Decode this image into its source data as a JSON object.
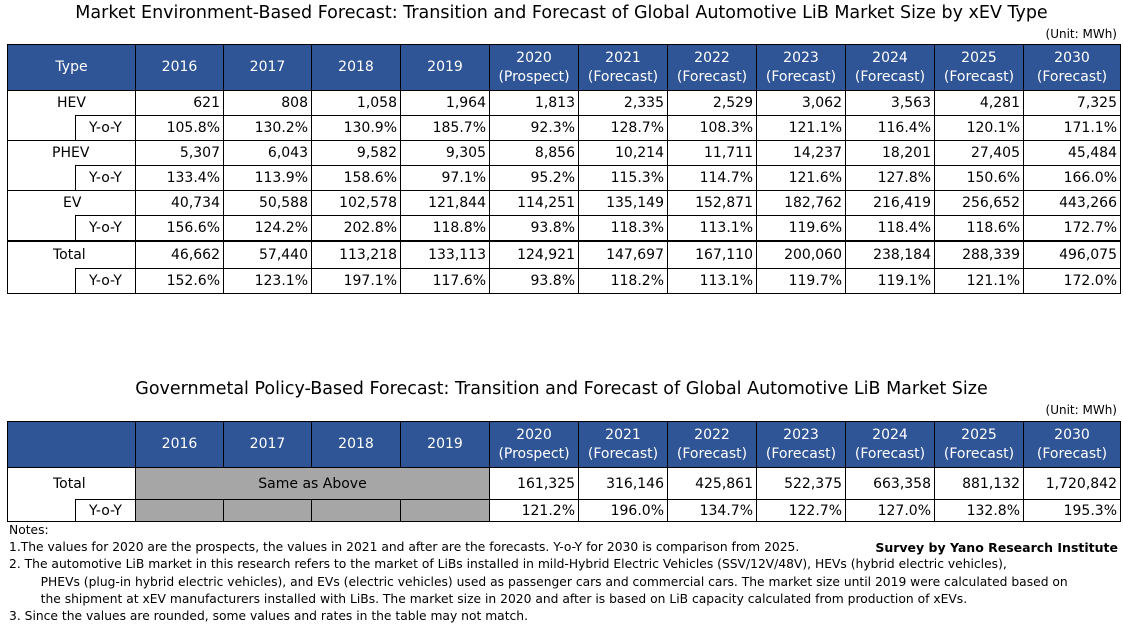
{
  "chart_data": [
    {
      "type": "table",
      "title": "Market Environment-Based Forecast: Transition and Forecast of Global Automotive LiB Market Size by xEV Type",
      "unit": "(Unit: MWh)",
      "type_header": "Type",
      "columns": [
        {
          "year": "2016",
          "note": ""
        },
        {
          "year": "2017",
          "note": ""
        },
        {
          "year": "2018",
          "note": ""
        },
        {
          "year": "2019",
          "note": ""
        },
        {
          "year": "2020",
          "note": "(Prospect)"
        },
        {
          "year": "2021",
          "note": "(Forecast)"
        },
        {
          "year": "2022",
          "note": "(Forecast)"
        },
        {
          "year": "2023",
          "note": "(Forecast)"
        },
        {
          "year": "2024",
          "note": "(Forecast)"
        },
        {
          "year": "2025",
          "note": "(Forecast)"
        },
        {
          "year": "2030",
          "note": "(Forecast)"
        }
      ],
      "rows": [
        {
          "name": "HEV",
          "values": [
            "621",
            "808",
            "1,058",
            "1,964",
            "1,813",
            "2,335",
            "2,529",
            "3,062",
            "3,563",
            "4,281",
            "7,325"
          ],
          "yoy_label": "Y-o-Y",
          "yoy": [
            "105.8%",
            "130.2%",
            "130.9%",
            "185.7%",
            "92.3%",
            "128.7%",
            "108.3%",
            "121.1%",
            "116.4%",
            "120.1%",
            "171.1%"
          ]
        },
        {
          "name": "PHEV",
          "values": [
            "5,307",
            "6,043",
            "9,582",
            "9,305",
            "8,856",
            "10,214",
            "11,711",
            "14,237",
            "18,201",
            "27,405",
            "45,484"
          ],
          "yoy_label": "Y-o-Y",
          "yoy": [
            "133.4%",
            "113.9%",
            "158.6%",
            "97.1%",
            "95.2%",
            "115.3%",
            "114.7%",
            "121.6%",
            "127.8%",
            "150.6%",
            "166.0%"
          ]
        },
        {
          "name": "EV",
          "values": [
            "40,734",
            "50,588",
            "102,578",
            "121,844",
            "114,251",
            "135,149",
            "152,871",
            "182,762",
            "216,419",
            "256,652",
            "443,266"
          ],
          "yoy_label": "Y-o-Y",
          "yoy": [
            "156.6%",
            "124.2%",
            "202.8%",
            "118.8%",
            "93.8%",
            "118.3%",
            "113.1%",
            "119.6%",
            "118.4%",
            "118.6%",
            "172.7%"
          ]
        },
        {
          "name": "Total",
          "values": [
            "46,662",
            "57,440",
            "113,218",
            "133,113",
            "124,921",
            "147,697",
            "167,110",
            "200,060",
            "238,184",
            "288,339",
            "496,075"
          ],
          "yoy_label": "Y-o-Y",
          "yoy": [
            "152.6%",
            "123.1%",
            "197.1%",
            "117.6%",
            "93.8%",
            "118.2%",
            "113.1%",
            "119.7%",
            "119.1%",
            "121.1%",
            "172.0%"
          ]
        }
      ]
    },
    {
      "type": "table",
      "title": "Governmetal Policy-Based Forecast: Transition and Forecast of Global Automotive LiB Market Size",
      "unit": "(Unit: MWh)",
      "same_text": "Same as Above",
      "columns": [
        {
          "year": "2016",
          "note": ""
        },
        {
          "year": "2017",
          "note": ""
        },
        {
          "year": "2018",
          "note": ""
        },
        {
          "year": "2019",
          "note": ""
        },
        {
          "year": "2020",
          "note": "(Prospect)"
        },
        {
          "year": "2021",
          "note": "(Forecast)"
        },
        {
          "year": "2022",
          "note": "(Forecast)"
        },
        {
          "year": "2023",
          "note": "(Forecast)"
        },
        {
          "year": "2024",
          "note": "(Forecast)"
        },
        {
          "year": "2025",
          "note": "(Forecast)"
        },
        {
          "year": "2030",
          "note": "(Forecast)"
        }
      ],
      "total": {
        "name": "Total",
        "values": [
          "161,325",
          "316,146",
          "425,861",
          "522,375",
          "663,358",
          "881,132",
          "1,720,842"
        ]
      },
      "yoy": {
        "name": "Y-o-Y",
        "values": [
          "121.2%",
          "196.0%",
          "134.7%",
          "122.7%",
          "127.0%",
          "132.8%",
          "195.3%"
        ]
      }
    }
  ],
  "notes": {
    "heading": "Notes:",
    "lines": [
      "1.The values for 2020 are the prospects, the values in 2021 and after are the forecasts. Y-o-Y for 2030 is comparison from 2025.",
      "2. The automotive LiB market in this research refers to the market of LiBs installed in mild-Hybrid Electric Vehicles (SSV/12V/48V), HEVs (hybrid electric vehicles),",
      "    PHEVs (plug-in hybrid electric vehicles), and EVs (electric vehicles) used as passenger cars and commercial cars. The market size until 2019 were calculated based on",
      "    the shipment at xEV manufacturers installed with LiBs. The market size in 2020 and after is based on LiB capacity calculated from production of xEVs.",
      "3. Since the values are rounded, some values and rates in the table may not match."
    ]
  },
  "source": "Survey by Yano Research Institute"
}
